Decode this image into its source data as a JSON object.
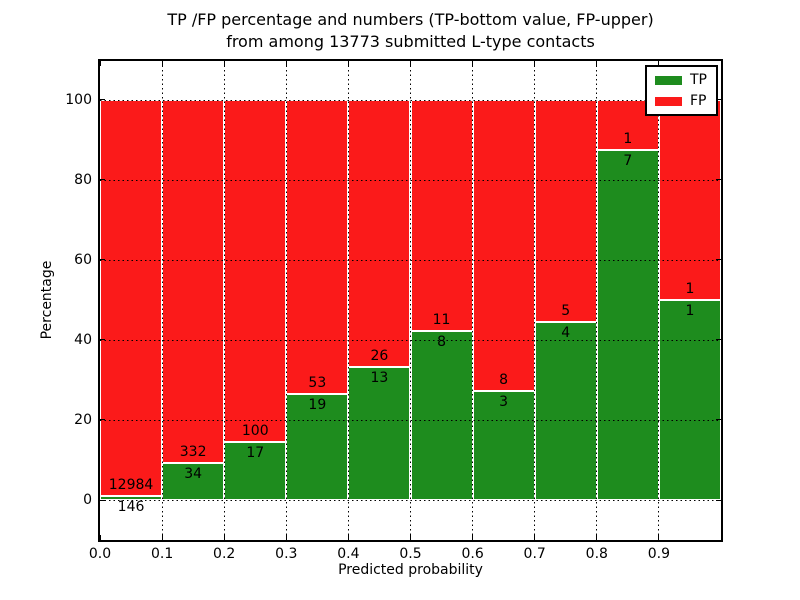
{
  "title": {
    "line1": "TP /FP percentage and numbers (TP-bottom value, FP-upper)",
    "line2": "from among 13773 submitted L-type contacts"
  },
  "y_axis": {
    "label": "Percentage",
    "ticks": [
      0,
      20,
      40,
      60,
      80,
      100
    ]
  },
  "x_axis": {
    "label": "Predicted probability",
    "ticks": [
      "0.0",
      "0.1",
      "0.2",
      "0.3",
      "0.4",
      "0.5",
      "0.6",
      "0.7",
      "0.8",
      "0.9"
    ]
  },
  "legend": {
    "items": [
      {
        "label": "TP",
        "color": "#1e8c1e"
      },
      {
        "label": "FP",
        "color": "#fb1a1a"
      }
    ]
  },
  "colors": {
    "tp": "#1e8c1e",
    "fp": "#fb1a1a",
    "bar_edge": "#ffffff",
    "grid": "#000000",
    "background": "#ffffff"
  },
  "chart_data": {
    "type": "bar",
    "stacked": true,
    "orientation": "vertical",
    "title": "TP /FP percentage and numbers (TP-bottom value, FP-upper) from among 13773 submitted L-type contacts",
    "xlabel": "Predicted probability",
    "ylabel": "Percentage",
    "xlim": [
      0.0,
      1.0
    ],
    "ylim": [
      -10,
      110
    ],
    "grid": true,
    "legend_position": "upper right",
    "total_contacts": 13773,
    "bin_width": 0.1,
    "bin_starts": [
      0.0,
      0.1,
      0.2,
      0.3,
      0.4,
      0.5,
      0.6,
      0.7,
      0.8,
      0.9
    ],
    "series": [
      {
        "name": "TP",
        "counts": [
          146,
          34,
          17,
          19,
          13,
          8,
          3,
          4,
          7,
          1
        ],
        "percent": [
          1.11,
          9.29,
          14.53,
          26.39,
          33.33,
          42.11,
          27.27,
          44.44,
          87.5,
          50.0
        ]
      },
      {
        "name": "FP",
        "counts": [
          12984,
          332,
          100,
          53,
          26,
          11,
          8,
          5,
          1,
          1
        ],
        "percent": [
          98.89,
          90.71,
          85.47,
          73.61,
          66.67,
          57.89,
          72.73,
          55.56,
          12.5,
          50.0
        ]
      }
    ]
  }
}
